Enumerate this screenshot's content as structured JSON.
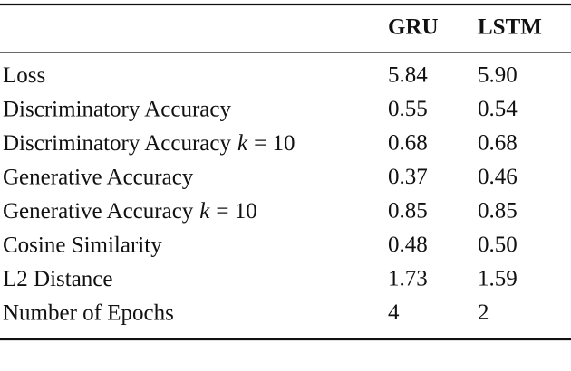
{
  "table": {
    "header": [
      "GRU",
      "LSTM"
    ],
    "rows": [
      {
        "label": "Loss",
        "cells": [
          "5.84",
          "5.90"
        ]
      },
      {
        "label": "Discriminatory Accuracy",
        "cells": [
          "0.55",
          "0.54"
        ]
      },
      {
        "label": "Discriminatory Accuracy",
        "var": "k",
        "suffix": "= 10",
        "cells": [
          "0.68",
          "0.68"
        ]
      },
      {
        "label": "Generative Accuracy",
        "cells": [
          "0.37",
          "0.46"
        ]
      },
      {
        "label": "Generative Accuracy",
        "var": "k",
        "suffix": "= 10",
        "cells": [
          "0.85",
          "0.85"
        ]
      },
      {
        "label": "Cosine Similarity",
        "cells": [
          "0.48",
          "0.50"
        ]
      },
      {
        "label": "L2 Distance",
        "cells": [
          "1.73",
          "1.59"
        ]
      },
      {
        "label": "Number of Epochs",
        "cells": [
          "4",
          "2"
        ]
      }
    ]
  }
}
